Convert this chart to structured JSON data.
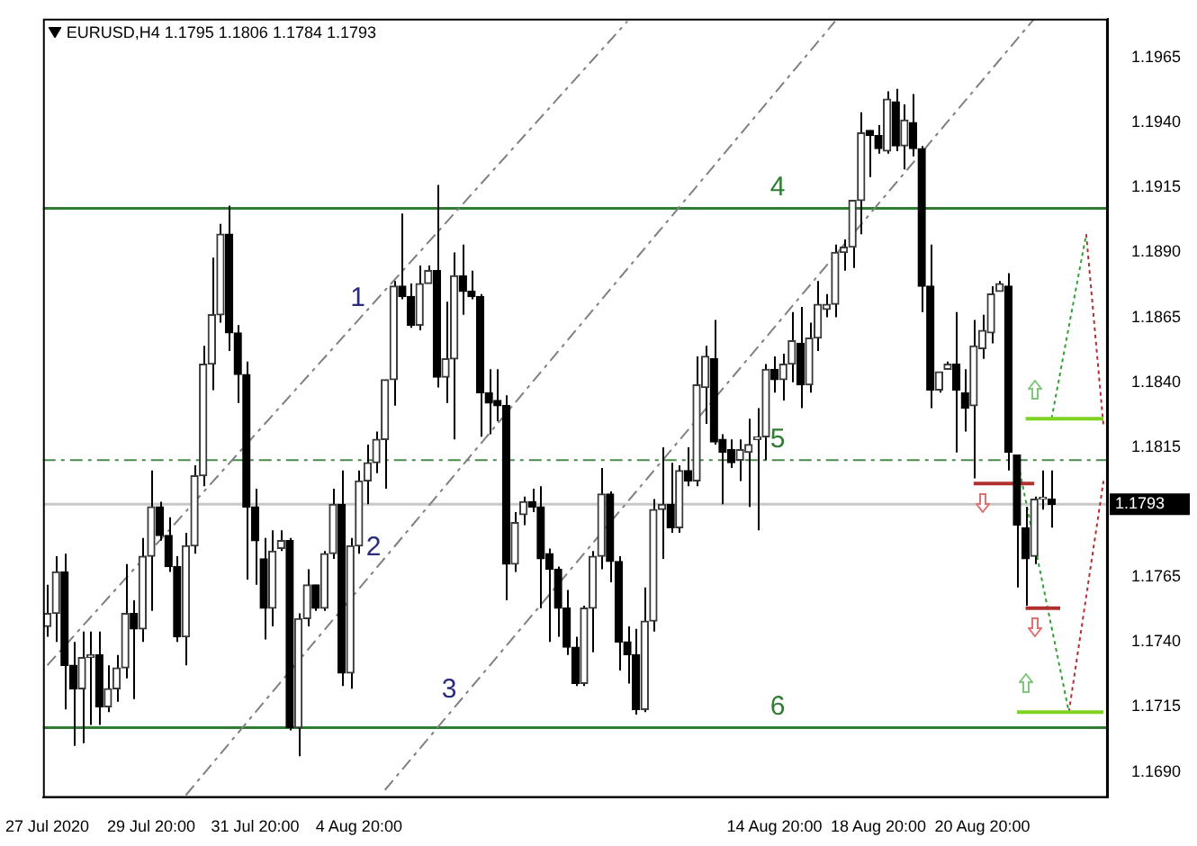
{
  "chart_data": {
    "type": "candlestick",
    "title": "EURUSD,H4 1.1795 1.1806 1.1784 1.1793",
    "categories": [
      "27 Jul 2020",
      null,
      null,
      null,
      null,
      null,
      null,
      null,
      null,
      null,
      null,
      null,
      "29 Jul 20:00",
      null,
      null,
      null,
      null,
      null,
      null,
      null,
      null,
      null,
      null,
      null,
      "31 Jul 20:00",
      null,
      null,
      null,
      null,
      null,
      null,
      null,
      null,
      null,
      null,
      null,
      "4 Aug 20:00",
      null,
      null,
      null,
      null,
      null,
      null,
      null,
      null,
      null,
      null,
      null,
      null,
      null,
      null,
      null,
      null,
      null,
      null,
      null,
      null,
      null,
      null,
      null,
      null,
      null,
      null,
      null,
      null,
      null,
      null,
      null,
      null,
      null,
      null,
      null,
      null,
      null,
      null,
      null,
      null,
      null,
      null,
      null,
      null,
      null,
      null,
      null,
      "14 Aug 20:00",
      null,
      null,
      null,
      null,
      null,
      null,
      null,
      null,
      null,
      null,
      null,
      "18 Aug 20:00",
      null,
      null,
      null,
      null,
      null,
      null,
      null,
      null,
      null,
      null,
      null,
      "20 Aug 20:00",
      null,
      null,
      null,
      null,
      null,
      null,
      null,
      null,
      null,
      null,
      null,
      null,
      null,
      null
    ],
    "ohlc": [
      [
        1.1746,
        1.1762,
        1.1742,
        1.1751
      ],
      [
        1.1751,
        1.1773,
        1.174,
        1.1767
      ],
      [
        1.1767,
        1.1774,
        1.1714,
        1.1731
      ],
      [
        1.1731,
        1.174,
        1.17,
        1.1722
      ],
      [
        1.1722,
        1.1744,
        1.1701,
        1.1734
      ],
      [
        1.1734,
        1.1744,
        1.1708,
        1.1735
      ],
      [
        1.1735,
        1.1744,
        1.1708,
        1.1715
      ],
      [
        1.1715,
        1.1731,
        1.1713,
        1.1722
      ],
      [
        1.1722,
        1.1735,
        1.1717,
        1.173
      ],
      [
        1.173,
        1.177,
        1.1726,
        1.1751
      ],
      [
        1.1751,
        1.1756,
        1.1718,
        1.1745
      ],
      [
        1.1745,
        1.178,
        1.174,
        1.1773
      ],
      [
        1.1773,
        1.1806,
        1.1752,
        1.1792
      ],
      [
        1.1792,
        1.1794,
        1.1779,
        1.1781
      ],
      [
        1.1781,
        1.1788,
        1.1767,
        1.1769
      ],
      [
        1.1769,
        1.1773,
        1.174,
        1.1742
      ],
      [
        1.1742,
        1.1782,
        1.1731,
        1.1777
      ],
      [
        1.1777,
        1.1808,
        1.1774,
        1.1804
      ],
      [
        1.1804,
        1.1854,
        1.18,
        1.1847
      ],
      [
        1.1847,
        1.1888,
        1.1837,
        1.1866
      ],
      [
        1.1866,
        1.1901,
        1.1863,
        1.1897
      ],
      [
        1.1897,
        1.1908,
        1.1852,
        1.1859
      ],
      [
        1.1859,
        1.1862,
        1.1832,
        1.1843
      ],
      [
        1.1843,
        1.1848,
        1.1764,
        1.1792
      ],
      [
        1.1792,
        1.1799,
        1.1762,
        1.1779
      ],
      [
        1.1772,
        1.178,
        1.1741,
        1.1753
      ],
      [
        1.1753,
        1.1783,
        1.1746,
        1.1775
      ],
      [
        1.1776,
        1.1783,
        1.1775,
        1.1779
      ],
      [
        1.1779,
        1.178,
        1.1706,
        1.1707
      ],
      [
        1.1707,
        1.1751,
        1.1696,
        1.1749
      ],
      [
        1.1749,
        1.1768,
        1.1746,
        1.1762
      ],
      [
        1.1762,
        1.1762,
        1.1752,
        1.1753
      ],
      [
        1.1753,
        1.1775,
        1.1752,
        1.1774
      ],
      [
        1.1774,
        1.1799,
        1.1772,
        1.1793
      ],
      [
        1.1793,
        1.1806,
        1.1723,
        1.1728
      ],
      [
        1.1728,
        1.178,
        1.1722,
        1.1777
      ],
      [
        1.1777,
        1.1806,
        1.1774,
        1.1802
      ],
      [
        1.1802,
        1.1816,
        1.1793,
        1.1809
      ],
      [
        1.1809,
        1.1821,
        1.1805,
        1.1818
      ],
      [
        1.1818,
        1.1841,
        1.1799,
        1.1841
      ],
      [
        1.1841,
        1.1879,
        1.1831,
        1.1877
      ],
      [
        1.1877,
        1.1905,
        1.1872,
        1.1873
      ],
      [
        1.1873,
        1.1878,
        1.1861,
        1.1862
      ],
      [
        1.1862,
        1.1885,
        1.186,
        1.1878
      ],
      [
        1.1878,
        1.1885,
        1.1878,
        1.1883
      ],
      [
        1.1883,
        1.1916,
        1.1838,
        1.1842
      ],
      [
        1.1842,
        1.1871,
        1.1832,
        1.1849
      ],
      [
        1.1849,
        1.189,
        1.1818,
        1.1881
      ],
      [
        1.1881,
        1.1893,
        1.1866,
        1.1875
      ],
      [
        1.1875,
        1.1883,
        1.1872,
        1.1873
      ],
      [
        1.1873,
        1.1874,
        1.1819,
        1.1836
      ],
      [
        1.1836,
        1.1845,
        1.182,
        1.1832
      ],
      [
        1.1833,
        1.1845,
        1.1825,
        1.1831
      ],
      [
        1.1831,
        1.1835,
        1.1756,
        1.177
      ],
      [
        1.177,
        1.179,
        1.1767,
        1.1786
      ],
      [
        1.1789,
        1.1796,
        1.1785,
        1.1794
      ],
      [
        1.1794,
        1.1799,
        1.179,
        1.1792
      ],
      [
        1.1792,
        1.18,
        1.1753,
        1.1772
      ],
      [
        1.1774,
        1.1776,
        1.174,
        1.1768
      ],
      [
        1.1768,
        1.1769,
        1.1742,
        1.1753
      ],
      [
        1.1753,
        1.176,
        1.1735,
        1.1738
      ],
      [
        1.1738,
        1.1742,
        1.1723,
        1.1724
      ],
      [
        1.1724,
        1.1754,
        1.1723,
        1.1753
      ],
      [
        1.1753,
        1.1775,
        1.1736,
        1.1773
      ],
      [
        1.1773,
        1.1807,
        1.1768,
        1.1797
      ],
      [
        1.1797,
        1.1798,
        1.1763,
        1.1771
      ],
      [
        1.1771,
        1.1773,
        1.1729,
        1.174
      ],
      [
        1.174,
        1.1746,
        1.1724,
        1.1735
      ],
      [
        1.1735,
        1.1745,
        1.1712,
        1.1714
      ],
      [
        1.1714,
        1.1761,
        1.1713,
        1.1748
      ],
      [
        1.1748,
        1.1795,
        1.1744,
        1.1791
      ],
      [
        1.1791,
        1.1815,
        1.1772,
        1.1793
      ],
      [
        1.1793,
        1.1809,
        1.1782,
        1.1784
      ],
      [
        1.1784,
        1.1808,
        1.1782,
        1.1806
      ],
      [
        1.1806,
        1.1815,
        1.18,
        1.1802
      ],
      [
        1.1802,
        1.185,
        1.18,
        1.1839
      ],
      [
        1.1838,
        1.1854,
        1.1824,
        1.185
      ],
      [
        1.1849,
        1.1864,
        1.1816,
        1.1817
      ],
      [
        1.1818,
        1.182,
        1.1793,
        1.1813
      ],
      [
        1.1814,
        1.1818,
        1.1807,
        1.1809
      ],
      [
        1.181,
        1.1818,
        1.1802,
        1.1814
      ],
      [
        1.1813,
        1.1826,
        1.1792,
        1.1816
      ],
      [
        1.1818,
        1.183,
        1.1783,
        1.1819
      ],
      [
        1.1819,
        1.1847,
        1.181,
        1.1845
      ],
      [
        1.1845,
        1.185,
        1.1836,
        1.1841
      ],
      [
        1.1841,
        1.1851,
        1.1833,
        1.1847
      ],
      [
        1.1847,
        1.1867,
        1.184,
        1.1856
      ],
      [
        1.1855,
        1.1869,
        1.183,
        1.1839
      ],
      [
        1.1839,
        1.1863,
        1.1836,
        1.1857
      ],
      [
        1.1857,
        1.1879,
        1.1852,
        1.187
      ],
      [
        1.1868,
        1.1874,
        1.1865,
        1.187
      ],
      [
        1.187,
        1.1893,
        1.1865,
        1.189
      ],
      [
        1.189,
        1.1895,
        1.1883,
        1.1892
      ],
      [
        1.1892,
        1.191,
        1.1884,
        1.191
      ],
      [
        1.191,
        1.1944,
        1.1897,
        1.1936
      ],
      [
        1.1937,
        1.1937,
        1.1919,
        1.1935
      ],
      [
        1.1935,
        1.1939,
        1.1928,
        1.193
      ],
      [
        1.1929,
        1.1952,
        1.1928,
        1.1949
      ],
      [
        1.1948,
        1.1953,
        1.1929,
        1.1931
      ],
      [
        1.1931,
        1.1947,
        1.1922,
        1.1941
      ],
      [
        1.194,
        1.1951,
        1.1927,
        1.193
      ],
      [
        1.193,
        1.1931,
        1.1867,
        1.1877
      ],
      [
        1.1877,
        1.1893,
        1.183,
        1.1837
      ],
      [
        1.1837,
        1.1844,
        1.1836,
        1.1844
      ],
      [
        1.1845,
        1.1848,
        1.1845,
        1.1847
      ],
      [
        1.1847,
        1.1867,
        1.1813,
        1.1837
      ],
      [
        1.1836,
        1.1845,
        1.1821,
        1.183
      ],
      [
        1.1831,
        1.1864,
        1.1803,
        1.1854
      ],
      [
        1.1853,
        1.1866,
        1.1849,
        1.186
      ],
      [
        1.1859,
        1.1877,
        1.1855,
        1.1874
      ],
      [
        1.1875,
        1.1879,
        1.1875,
        1.1878
      ],
      [
        1.1877,
        1.1882,
        1.1806,
        1.1813
      ],
      [
        1.1812,
        1.1812,
        1.1761,
        1.1785
      ],
      [
        1.1784,
        1.1792,
        1.1754,
        1.1772
      ],
      [
        1.1773,
        1.1796,
        1.177,
        1.1795
      ],
      [
        1.1795,
        1.1806,
        1.1791,
        1.1795
      ],
      [
        1.1795,
        1.1806,
        1.1784,
        1.1793
      ],
      null,
      null,
      null,
      null,
      null,
      null
    ],
    "series": [
      {
        "name": "1",
        "type": "line",
        "color": "#808080",
        "line_style": "dashed",
        "values": [
          1.1731,
          null,
          null,
          null,
          null,
          null,
          null,
          null,
          null,
          null,
          null,
          null,
          null,
          null,
          null,
          null,
          null,
          null,
          null,
          null,
          null,
          null,
          null,
          null,
          null,
          null,
          null,
          null,
          null,
          null,
          null,
          null,
          null,
          null,
          null,
          null,
          null,
          null,
          null,
          null,
          null,
          null,
          null,
          null,
          null,
          null,
          null,
          null,
          null,
          null,
          null,
          null,
          null,
          null,
          null,
          null,
          null,
          null,
          null,
          null,
          null,
          null,
          null,
          null,
          null,
          null,
          null,
          1.1979,
          null,
          null,
          null,
          null,
          null,
          null,
          null,
          null,
          null,
          null,
          null,
          null,
          null,
          null,
          null,
          null,
          null,
          null,
          null,
          null,
          null,
          null,
          null,
          null,
          null,
          null,
          null,
          null,
          null,
          null,
          null,
          null,
          null,
          null,
          null,
          null,
          null,
          null,
          null,
          null,
          null,
          null,
          null,
          null,
          null,
          null,
          null,
          null,
          null,
          null,
          null,
          null,
          null,
          null,
          null
        ]
      },
      {
        "name": "2",
        "type": "line",
        "color": "#808080",
        "line_style": "dashed",
        "values": [
          null,
          null,
          null,
          null,
          null,
          null,
          null,
          null,
          null,
          null,
          null,
          null,
          null,
          null,
          null,
          null,
          1.1681,
          null,
          null,
          null,
          null,
          null,
          null,
          null,
          null,
          null,
          null,
          null,
          null,
          null,
          null,
          null,
          null,
          null,
          null,
          null,
          null,
          null,
          null,
          null,
          null,
          null,
          null,
          null,
          null,
          null,
          null,
          null,
          null,
          null,
          null,
          null,
          null,
          null,
          null,
          null,
          null,
          null,
          null,
          null,
          null,
          null,
          null,
          null,
          null,
          null,
          null,
          null,
          null,
          null,
          null,
          null,
          null,
          null,
          null,
          null,
          null,
          null,
          null,
          null,
          null,
          null,
          null,
          null,
          null,
          null,
          null,
          null,
          null,
          null,
          null,
          1.1979,
          null,
          null,
          null,
          null,
          null,
          null,
          null,
          null,
          null,
          null,
          null,
          null,
          null,
          null,
          null,
          null,
          null,
          null,
          null,
          null,
          null,
          null,
          null,
          null,
          null,
          null,
          null,
          null,
          null,
          null,
          null
        ]
      },
      {
        "name": "3",
        "type": "line",
        "color": "#808080",
        "line_style": "dashed",
        "values": [
          null,
          null,
          null,
          null,
          null,
          null,
          null,
          null,
          null,
          null,
          null,
          null,
          null,
          null,
          null,
          null,
          null,
          null,
          null,
          null,
          null,
          null,
          null,
          null,
          null,
          null,
          null,
          null,
          null,
          null,
          null,
          null,
          null,
          null,
          null,
          null,
          null,
          null,
          null,
          1.1683,
          null,
          null,
          null,
          null,
          null,
          null,
          null,
          null,
          null,
          null,
          null,
          null,
          null,
          null,
          null,
          null,
          null,
          null,
          null,
          null,
          null,
          null,
          null,
          null,
          null,
          null,
          null,
          null,
          null,
          null,
          null,
          null,
          null,
          null,
          null,
          null,
          null,
          null,
          null,
          null,
          null,
          null,
          null,
          null,
          null,
          null,
          null,
          null,
          null,
          null,
          null,
          null,
          null,
          null,
          null,
          null,
          null,
          null,
          null,
          null,
          null,
          null,
          null,
          null,
          null,
          null,
          null,
          null,
          null,
          null,
          null,
          null,
          null,
          null,
          1.198,
          null,
          null,
          null,
          null,
          null,
          null,
          null,
          null
        ]
      },
      {
        "type": "line",
        "color": "#b03030",
        "line_style": "solid",
        "values": [
          null,
          null,
          null,
          null,
          null,
          null,
          null,
          null,
          null,
          null,
          null,
          null,
          null,
          null,
          null,
          null,
          null,
          null,
          null,
          null,
          null,
          null,
          null,
          null,
          null,
          null,
          null,
          null,
          null,
          null,
          null,
          null,
          null,
          null,
          null,
          null,
          null,
          null,
          null,
          null,
          null,
          null,
          null,
          null,
          null,
          null,
          null,
          null,
          null,
          null,
          null,
          null,
          null,
          null,
          null,
          null,
          null,
          null,
          null,
          null,
          null,
          null,
          null,
          null,
          null,
          null,
          null,
          null,
          null,
          null,
          null,
          null,
          null,
          null,
          null,
          null,
          null,
          null,
          null,
          null,
          null,
          null,
          null,
          null,
          null,
          null,
          null,
          null,
          null,
          null,
          null,
          null,
          null,
          null,
          null,
          null,
          null,
          null,
          null,
          null,
          null,
          null,
          null,
          null,
          null,
          null,
          null,
          1.1801,
          null,
          null,
          null,
          null,
          null,
          null,
          1.1801,
          null,
          null,
          null,
          null,
          null,
          null,
          null,
          null
        ]
      },
      {
        "type": "line",
        "color": "#b03030",
        "line_style": "solid",
        "values": [
          null,
          null,
          null,
          null,
          null,
          null,
          null,
          null,
          null,
          null,
          null,
          null,
          null,
          null,
          null,
          null,
          null,
          null,
          null,
          null,
          null,
          null,
          null,
          null,
          null,
          null,
          null,
          null,
          null,
          null,
          null,
          null,
          null,
          null,
          null,
          null,
          null,
          null,
          null,
          null,
          null,
          null,
          null,
          null,
          null,
          null,
          null,
          null,
          null,
          null,
          null,
          null,
          null,
          null,
          null,
          null,
          null,
          null,
          null,
          null,
          null,
          null,
          null,
          null,
          null,
          null,
          null,
          null,
          null,
          null,
          null,
          null,
          null,
          null,
          null,
          null,
          null,
          null,
          null,
          null,
          null,
          null,
          null,
          null,
          null,
          null,
          null,
          null,
          null,
          null,
          null,
          null,
          null,
          null,
          null,
          null,
          null,
          null,
          null,
          null,
          null,
          null,
          null,
          null,
          null,
          null,
          null,
          null,
          null,
          null,
          null,
          null,
          null,
          1.1753,
          null,
          null,
          null,
          1.1753,
          null,
          null,
          null,
          null,
          null
        ]
      },
      {
        "type": "line",
        "color": "#7ed321",
        "line_style": "solid",
        "values": [
          null,
          null,
          null,
          null,
          null,
          null,
          null,
          null,
          null,
          null,
          null,
          null,
          null,
          null,
          null,
          null,
          null,
          null,
          null,
          null,
          null,
          null,
          null,
          null,
          null,
          null,
          null,
          null,
          null,
          null,
          null,
          null,
          null,
          null,
          null,
          null,
          null,
          null,
          null,
          null,
          null,
          null,
          null,
          null,
          null,
          null,
          null,
          null,
          null,
          null,
          null,
          null,
          null,
          null,
          null,
          null,
          null,
          null,
          null,
          null,
          null,
          null,
          null,
          null,
          null,
          null,
          null,
          null,
          null,
          null,
          null,
          null,
          null,
          null,
          null,
          null,
          null,
          null,
          null,
          null,
          null,
          null,
          null,
          null,
          null,
          null,
          null,
          null,
          null,
          null,
          null,
          null,
          null,
          null,
          null,
          null,
          null,
          null,
          null,
          null,
          null,
          null,
          null,
          null,
          null,
          null,
          null,
          null,
          null,
          null,
          null,
          null,
          null,
          1.1826,
          null,
          null,
          null,
          null,
          null,
          null,
          null,
          null,
          1.1826
        ]
      },
      {
        "type": "line",
        "color": "#7ed321",
        "line_style": "solid",
        "values": [
          null,
          null,
          null,
          null,
          null,
          null,
          null,
          null,
          null,
          null,
          null,
          null,
          null,
          null,
          null,
          null,
          null,
          null,
          null,
          null,
          null,
          null,
          null,
          null,
          null,
          null,
          null,
          null,
          null,
          null,
          null,
          null,
          null,
          null,
          null,
          null,
          null,
          null,
          null,
          null,
          null,
          null,
          null,
          null,
          null,
          null,
          null,
          null,
          null,
          null,
          null,
          null,
          null,
          null,
          null,
          null,
          null,
          null,
          null,
          null,
          null,
          null,
          null,
          null,
          null,
          null,
          null,
          null,
          null,
          null,
          null,
          null,
          null,
          null,
          null,
          null,
          null,
          null,
          null,
          null,
          null,
          null,
          null,
          null,
          null,
          null,
          null,
          null,
          null,
          null,
          null,
          null,
          null,
          null,
          null,
          null,
          null,
          null,
          null,
          null,
          null,
          null,
          null,
          null,
          null,
          null,
          null,
          null,
          null,
          null,
          null,
          null,
          1.1713,
          null,
          null,
          null,
          null,
          null,
          null,
          null,
          null,
          null,
          1.1713
        ]
      },
      {
        "type": "line",
        "color": "#33a033",
        "line_style": "dotted",
        "values": [
          null,
          null,
          null,
          null,
          null,
          null,
          null,
          null,
          null,
          null,
          null,
          null,
          null,
          null,
          null,
          null,
          null,
          null,
          null,
          null,
          null,
          null,
          null,
          null,
          null,
          null,
          null,
          null,
          null,
          null,
          null,
          null,
          null,
          null,
          null,
          null,
          null,
          null,
          null,
          null,
          null,
          null,
          null,
          null,
          null,
          null,
          null,
          null,
          null,
          null,
          null,
          null,
          null,
          null,
          null,
          null,
          null,
          null,
          null,
          null,
          null,
          null,
          null,
          null,
          null,
          null,
          null,
          null,
          null,
          null,
          null,
          null,
          null,
          null,
          null,
          null,
          null,
          null,
          null,
          null,
          null,
          null,
          null,
          null,
          null,
          null,
          null,
          null,
          null,
          null,
          null,
          null,
          null,
          null,
          null,
          null,
          null,
          null,
          null,
          null,
          null,
          null,
          null,
          null,
          null,
          null,
          null,
          null,
          null,
          null,
          null,
          null,
          null,
          null,
          null,
          null,
          1.1826,
          null,
          null,
          null,
          1.1897,
          null,
          null
        ]
      },
      {
        "type": "line",
        "color": "#b03030",
        "line_style": "dotted",
        "values": [
          null,
          null,
          null,
          null,
          null,
          null,
          null,
          null,
          null,
          null,
          null,
          null,
          null,
          null,
          null,
          null,
          null,
          null,
          null,
          null,
          null,
          null,
          null,
          null,
          null,
          null,
          null,
          null,
          null,
          null,
          null,
          null,
          null,
          null,
          null,
          null,
          null,
          null,
          null,
          null,
          null,
          null,
          null,
          null,
          null,
          null,
          null,
          null,
          null,
          null,
          null,
          null,
          null,
          null,
          null,
          null,
          null,
          null,
          null,
          null,
          null,
          null,
          null,
          null,
          null,
          null,
          null,
          null,
          null,
          null,
          null,
          null,
          null,
          null,
          null,
          null,
          null,
          null,
          null,
          null,
          null,
          null,
          null,
          null,
          null,
          null,
          null,
          null,
          null,
          null,
          null,
          null,
          null,
          null,
          null,
          null,
          null,
          null,
          null,
          null,
          null,
          null,
          null,
          null,
          null,
          null,
          null,
          null,
          null,
          null,
          null,
          null,
          null,
          null,
          null,
          null,
          null,
          null,
          null,
          null,
          1.1897,
          null,
          1.1823
        ]
      },
      {
        "type": "line",
        "color": "#33a033",
        "line_style": "dotted",
        "values": [
          null,
          null,
          null,
          null,
          null,
          null,
          null,
          null,
          null,
          null,
          null,
          null,
          null,
          null,
          null,
          null,
          null,
          null,
          null,
          null,
          null,
          null,
          null,
          null,
          null,
          null,
          null,
          null,
          null,
          null,
          null,
          null,
          null,
          null,
          null,
          null,
          null,
          null,
          null,
          null,
          null,
          null,
          null,
          null,
          null,
          null,
          null,
          null,
          null,
          null,
          null,
          null,
          null,
          null,
          null,
          null,
          null,
          null,
          null,
          null,
          null,
          null,
          null,
          null,
          null,
          null,
          null,
          null,
          null,
          null,
          null,
          null,
          null,
          null,
          null,
          null,
          null,
          null,
          null,
          null,
          null,
          null,
          null,
          null,
          null,
          null,
          null,
          null,
          null,
          null,
          null,
          null,
          null,
          null,
          null,
          null,
          null,
          null,
          null,
          null,
          null,
          null,
          null,
          null,
          null,
          null,
          null,
          null,
          null,
          null,
          null,
          null,
          1.1811,
          null,
          null,
          null,
          null,
          null,
          1.1713,
          null,
          null,
          null,
          null
        ]
      },
      {
        "type": "line",
        "color": "#b03030",
        "line_style": "dotted",
        "values": [
          null,
          null,
          null,
          null,
          null,
          null,
          null,
          null,
          null,
          null,
          null,
          null,
          null,
          null,
          null,
          null,
          null,
          null,
          null,
          null,
          null,
          null,
          null,
          null,
          null,
          null,
          null,
          null,
          null,
          null,
          null,
          null,
          null,
          null,
          null,
          null,
          null,
          null,
          null,
          null,
          null,
          null,
          null,
          null,
          null,
          null,
          null,
          null,
          null,
          null,
          null,
          null,
          null,
          null,
          null,
          null,
          null,
          null,
          null,
          null,
          null,
          null,
          null,
          null,
          null,
          null,
          null,
          null,
          null,
          null,
          null,
          null,
          null,
          null,
          null,
          null,
          null,
          null,
          null,
          null,
          null,
          null,
          null,
          null,
          null,
          null,
          null,
          null,
          null,
          null,
          null,
          null,
          null,
          null,
          null,
          null,
          null,
          null,
          null,
          null,
          null,
          null,
          null,
          null,
          null,
          null,
          null,
          null,
          null,
          null,
          null,
          null,
          null,
          null,
          null,
          null,
          null,
          null,
          1.1713,
          null,
          null,
          null,
          1.1802
        ]
      }
    ],
    "ref_lines": [
      {
        "axis": "y",
        "value": 1.1793,
        "label": "1.1793",
        "color": "#c8c8c8",
        "line_style": "solid"
      },
      {
        "axis": "y",
        "value": 1.1907,
        "color": "#2e7d32",
        "line_style": "solid"
      },
      {
        "axis": "y",
        "value": 1.181,
        "color": "#4a8a4a",
        "line_style": "dashed"
      },
      {
        "axis": "y",
        "value": 1.1707,
        "color": "#2e7d32",
        "line_style": "solid"
      }
    ],
    "annotations": [
      {
        "text": "4",
        "y": 1.1907
      },
      {
        "text": "5",
        "y": 1.181
      },
      {
        "text": "6",
        "y": 1.1707
      }
    ],
    "ylim": [
      1.168,
      1.198
    ],
    "yticks": [
      {
        "value": 1.169,
        "label": "1.1690"
      },
      1.1715,
      {
        "value": 1.174,
        "label": "1.1740"
      },
      1.1765,
      1.1815,
      {
        "value": 1.184,
        "label": "1.1840"
      },
      1.1865,
      {
        "value": 1.189,
        "label": "1.1890"
      },
      1.1915,
      {
        "value": 1.194,
        "label": "1.1940"
      },
      1.1965
    ],
    "marker": "none",
    "grid": false,
    "legend": false
  }
}
